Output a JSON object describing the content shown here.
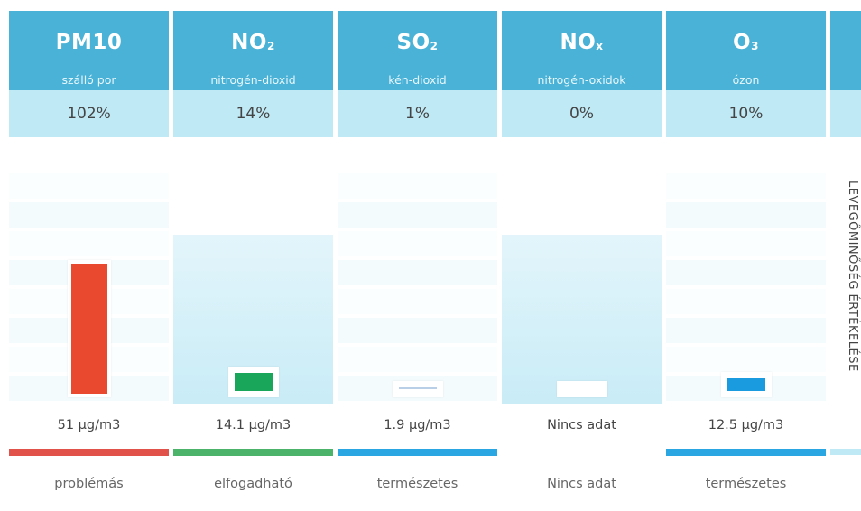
{
  "side_label": "LEVEGŐMINŐSÉG ÉRTÉKELÉSE",
  "chart_data": {
    "type": "bar",
    "categories": [
      "PM10",
      "NO2",
      "SO2",
      "NOx",
      "O3"
    ],
    "units": "µg/m3",
    "values": [
      51,
      14.1,
      1.9,
      null,
      12.5
    ]
  },
  "colors": {
    "header": "#49b2d6",
    "percent_band": "#bfe9f5",
    "problematic": "#e8492f",
    "acceptable": "#1aa65a",
    "natural": "#1a9be0"
  },
  "pollutants": [
    {
      "symbol": "PM10",
      "sub": "",
      "name": "szálló por",
      "percent": "102%",
      "value_label": "51 µg/m3",
      "status": "problémás",
      "bar_color": "#e8492f",
      "status_color": "#e0524a",
      "fraction": 1.0
    },
    {
      "symbol": "NO",
      "sub": "2",
      "name": "nitrogén-dioxid",
      "percent": "14%",
      "value_label": "14.1 µg/m3",
      "status": "elfogadható",
      "bar_color": "#1aa65a",
      "status_color": "#4cb36a",
      "fraction": 0.14
    },
    {
      "symbol": "SO",
      "sub": "2",
      "name": "kén-dioxid",
      "percent": "1%",
      "value_label": "1.9 µg/m3",
      "status": "természetes",
      "bar_color": "#b9cfe8",
      "status_color": "#2aa6e2",
      "fraction": 0.01
    },
    {
      "symbol": "NO",
      "sub": "x",
      "name": "nitrogén-oxidok",
      "percent": "0%",
      "value_label": "Nincs adat",
      "status": "Nincs adat",
      "bar_color": "#ffffff",
      "status_color": "#ffffff",
      "fraction": 0.0
    },
    {
      "symbol": "O",
      "sub": "3",
      "name": "ózon",
      "percent": "10%",
      "value_label": "12.5 µg/m3",
      "status": "természetes",
      "bar_color": "#1a9be0",
      "status_color": "#2aa6e2",
      "fraction": 0.1
    }
  ]
}
